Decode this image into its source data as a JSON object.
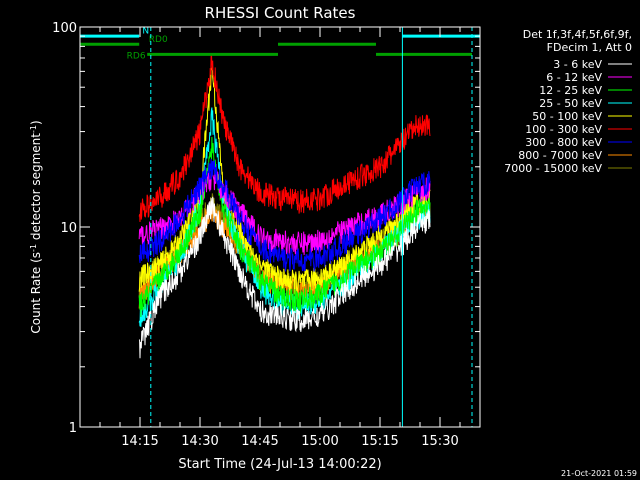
{
  "chart_data": {
    "type": "line",
    "title": "RHESSI Count Rates",
    "xlabel": "Start Time (24-Jul-13 14:00:22)",
    "ylabel_parts": [
      "Count Rate (s",
      "-1",
      " detector segment",
      "-1",
      ")"
    ],
    "ylabel": "Count Rate (s^-1 detector segment^-1)",
    "yscale": "log",
    "ylim": [
      1,
      100
    ],
    "xlim_minutes_after_14_00": [
      0,
      100
    ],
    "x_ticks": [
      {
        "label": "14:15",
        "minutes": 15
      },
      {
        "label": "14:30",
        "minutes": 30
      },
      {
        "label": "14:45",
        "minutes": 45
      },
      {
        "label": "15:00",
        "minutes": 60
      },
      {
        "label": "15:15",
        "minutes": 75
      },
      {
        "label": "15:30",
        "minutes": 90
      }
    ],
    "y_ticks": [
      {
        "label": "1",
        "value": 1
      },
      {
        "label": "10",
        "value": 10
      },
      {
        "label": "100",
        "value": 100
      }
    ],
    "legend_header": [
      "Det 1f,3f,4f,5f,6f,9f,",
      "FDecim 1, Att 0"
    ],
    "legend_position": "right",
    "data_window_minutes": [
      14.8,
      87.5
    ],
    "series": [
      {
        "name": "3 - 6 keV",
        "color": "#ffffff",
        "key": [
          [
            14.8,
            2.5
          ],
          [
            20,
            4.5
          ],
          [
            25,
            6
          ],
          [
            30,
            9
          ],
          [
            33,
            13
          ],
          [
            36,
            9
          ],
          [
            40,
            6
          ],
          [
            45,
            3.8
          ],
          [
            50,
            3.6
          ],
          [
            55,
            3.4
          ],
          [
            60,
            3.6
          ],
          [
            65,
            4.5
          ],
          [
            70,
            5.5
          ],
          [
            75,
            6.5
          ],
          [
            80,
            8
          ],
          [
            84,
            10
          ],
          [
            87.5,
            11
          ]
        ]
      },
      {
        "name": "6 - 12 keV",
        "color": "#ff00ff",
        "key": [
          [
            14.8,
            9
          ],
          [
            20,
            9.8
          ],
          [
            25,
            11
          ],
          [
            30,
            15
          ],
          [
            33,
            18
          ],
          [
            36,
            15
          ],
          [
            40,
            12
          ],
          [
            45,
            9
          ],
          [
            50,
            8.5
          ],
          [
            55,
            8.3
          ],
          [
            60,
            8.6
          ],
          [
            65,
            9.5
          ],
          [
            70,
            10.5
          ],
          [
            75,
            11.5
          ],
          [
            80,
            13
          ],
          [
            84,
            15
          ],
          [
            87.5,
            16
          ]
        ]
      },
      {
        "name": "12 - 25 keV",
        "color": "#00ff00",
        "key": [
          [
            14.8,
            4
          ],
          [
            20,
            5.5
          ],
          [
            25,
            7.5
          ],
          [
            30,
            12
          ],
          [
            33,
            25
          ],
          [
            36,
            12
          ],
          [
            40,
            8
          ],
          [
            45,
            5.5
          ],
          [
            50,
            4.5
          ],
          [
            55,
            4.3
          ],
          [
            60,
            4.6
          ],
          [
            65,
            5.5
          ],
          [
            70,
            6.5
          ],
          [
            75,
            7.5
          ],
          [
            80,
            9.5
          ],
          [
            84,
            12
          ],
          [
            87.5,
            13
          ]
        ]
      },
      {
        "name": "25 - 50 keV",
        "color": "#00ffff",
        "key": [
          [
            14.8,
            3.5
          ],
          [
            20,
            5
          ],
          [
            25,
            7
          ],
          [
            30,
            13
          ],
          [
            33,
            36
          ],
          [
            36,
            13
          ],
          [
            40,
            8
          ],
          [
            45,
            5
          ],
          [
            50,
            4.2
          ],
          [
            55,
            4
          ],
          [
            60,
            4.3
          ],
          [
            65,
            5
          ],
          [
            70,
            6.2
          ],
          [
            75,
            7.5
          ],
          [
            80,
            9.5
          ],
          [
            84,
            11
          ],
          [
            87.5,
            12
          ]
        ]
      },
      {
        "name": "50 - 100 keV",
        "color": "#ffff00",
        "key": [
          [
            14.8,
            5.5
          ],
          [
            20,
            6.5
          ],
          [
            25,
            8.5
          ],
          [
            30,
            14
          ],
          [
            33,
            65
          ],
          [
            36,
            14
          ],
          [
            40,
            9.5
          ],
          [
            45,
            6.5
          ],
          [
            50,
            5.5
          ],
          [
            55,
            5.3
          ],
          [
            60,
            5.6
          ],
          [
            65,
            6.3
          ],
          [
            70,
            7.5
          ],
          [
            75,
            9
          ],
          [
            80,
            11
          ],
          [
            84,
            13
          ],
          [
            87.5,
            14
          ]
        ]
      },
      {
        "name": "100 - 300 keV",
        "color": "#ff0000",
        "key": [
          [
            14.8,
            12
          ],
          [
            20,
            14
          ],
          [
            25,
            18
          ],
          [
            30,
            30
          ],
          [
            33,
            68
          ],
          [
            36,
            33
          ],
          [
            40,
            20
          ],
          [
            45,
            15
          ],
          [
            50,
            14
          ],
          [
            55,
            13.5
          ],
          [
            60,
            14
          ],
          [
            65,
            16
          ],
          [
            70,
            18
          ],
          [
            75,
            20
          ],
          [
            80,
            26
          ],
          [
            84,
            32
          ],
          [
            87.5,
            33
          ]
        ]
      },
      {
        "name": "300 - 800 keV",
        "color": "#0000ff",
        "key": [
          [
            14.8,
            7.2
          ],
          [
            20,
            8.5
          ],
          [
            25,
            11
          ],
          [
            30,
            16
          ],
          [
            33,
            20
          ],
          [
            36,
            16
          ],
          [
            40,
            11
          ],
          [
            45,
            8
          ],
          [
            50,
            7
          ],
          [
            55,
            6.8
          ],
          [
            60,
            7
          ],
          [
            65,
            8
          ],
          [
            70,
            9.5
          ],
          [
            75,
            11
          ],
          [
            80,
            13.5
          ],
          [
            84,
            16
          ],
          [
            87.5,
            17
          ]
        ]
      },
      {
        "name": "800 - 7000 keV",
        "color": "#ff8c00",
        "key": [
          [
            14.8,
            4.5
          ],
          [
            20,
            6
          ],
          [
            25,
            7.5
          ],
          [
            30,
            10
          ],
          [
            33,
            12
          ],
          [
            36,
            10
          ],
          [
            40,
            8
          ],
          [
            45,
            5.5
          ],
          [
            50,
            5
          ],
          [
            55,
            4.8
          ],
          [
            60,
            5
          ],
          [
            65,
            5.7
          ],
          [
            70,
            6.7
          ],
          [
            75,
            8
          ],
          [
            80,
            9.5
          ],
          [
            84,
            11.5
          ],
          [
            87.5,
            12
          ]
        ]
      },
      {
        "name": "7000 - 15000 keV",
        "color": "#808000",
        "key": [
          [
            14.8,
            5
          ],
          [
            20,
            6.5
          ],
          [
            25,
            8
          ],
          [
            30,
            11
          ],
          [
            33,
            13
          ],
          [
            36,
            11
          ],
          [
            40,
            8.5
          ],
          [
            45,
            6
          ],
          [
            50,
            5.3
          ],
          [
            55,
            5.1
          ],
          [
            60,
            5.3
          ],
          [
            65,
            6
          ],
          [
            70,
            7
          ],
          [
            75,
            8.5
          ],
          [
            80,
            10
          ],
          [
            84,
            12
          ],
          [
            87.5,
            13
          ]
        ]
      }
    ],
    "state_bars": [
      {
        "label": "N",
        "color": "#00ffff",
        "y": 90,
        "segments": [
          [
            0,
            14.8
          ],
          [
            80.6,
            100
          ]
        ]
      },
      {
        "label": "RD0",
        "color": "#00a000",
        "y": 82,
        "segments": [
          [
            0,
            14.8
          ],
          [
            49.5,
            74
          ]
        ]
      },
      {
        "label": "RD6",
        "color": "#00a000",
        "y": 73,
        "segments": [
          [
            16.8,
            49.5
          ],
          [
            74,
            98
          ]
        ]
      }
    ],
    "vertical_markers": [
      {
        "minutes": 17.7,
        "style": "dashed",
        "color": "#00ffff"
      },
      {
        "minutes": 80.6,
        "style": "solid",
        "color": "#00ffff"
      },
      {
        "minutes": 98,
        "style": "dashed",
        "color": "#00ffff"
      },
      {
        "minutes": 0,
        "style": "solid",
        "color": "#00ffff"
      }
    ],
    "footer_date": "21-Oct-2021 01:59"
  }
}
